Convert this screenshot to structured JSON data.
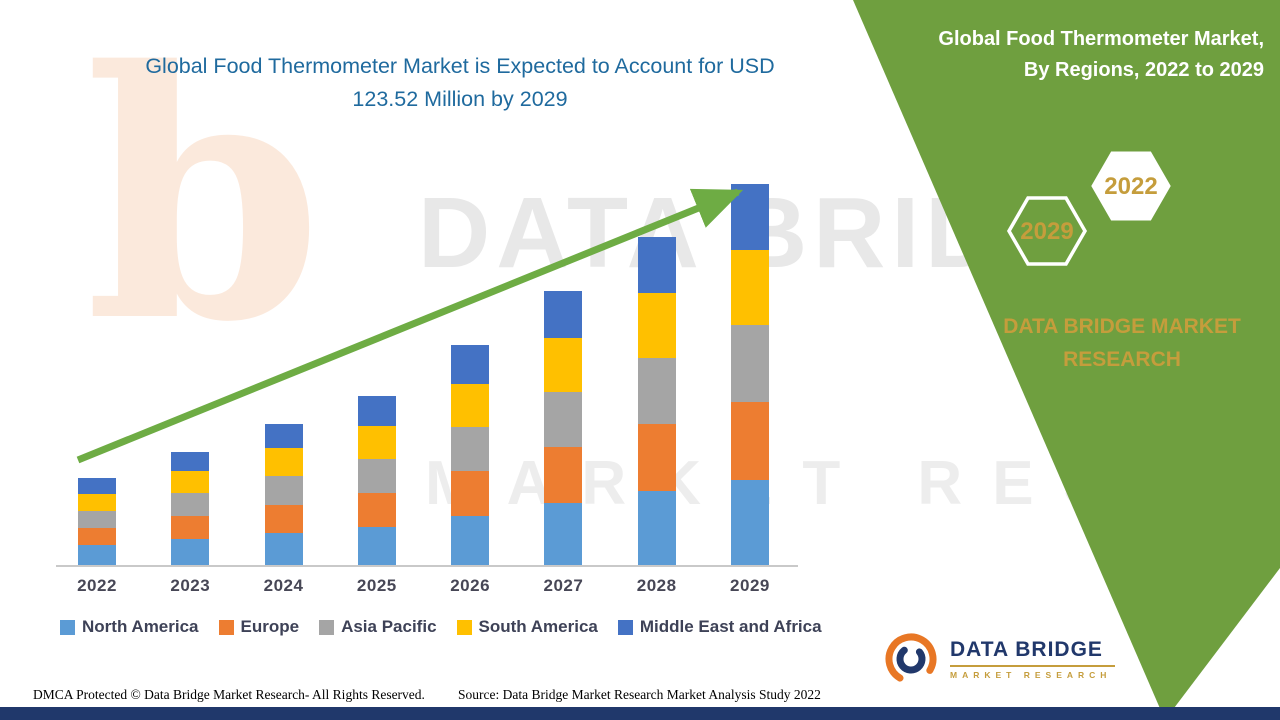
{
  "header": {
    "title_line1": "Global Food Thermometer Market is Expected to Account for USD",
    "title_line2": "123.52 Million by 2029",
    "title_color": "#1F6A9E"
  },
  "side_panel": {
    "bg_color": "#6F9F3F",
    "title_line1": "Global Food Thermometer Market,",
    "title_line2": "By Regions, 2022 to 2029",
    "hexagon_back_label": "2022",
    "hexagon_front_label": "2029",
    "gold_color": "#C59D3C",
    "brand_line1": "DATA BRIDGE MARKET",
    "brand_line2": "RESEARCH"
  },
  "chart_data": {
    "type": "bar",
    "stacked": true,
    "title": "Global Food Thermometer Market, By Regions, 2022 to 2029",
    "units": "USD Million",
    "categories": [
      "2022",
      "2023",
      "2024",
      "2025",
      "2026",
      "2027",
      "2028",
      "2029"
    ],
    "series": [
      {
        "name": "North America",
        "color": "#5B9BD5",
        "values": [
          6.5,
          8.5,
          10.4,
          12.4,
          16.0,
          20.0,
          24.0,
          27.5
        ]
      },
      {
        "name": "Europe",
        "color": "#ED7D31",
        "values": [
          5.5,
          7.5,
          9.2,
          11.0,
          14.5,
          18.2,
          21.8,
          25.4
        ]
      },
      {
        "name": "Asia Pacific",
        "color": "#A5A5A5",
        "values": [
          5.5,
          7.3,
          9.2,
          11.0,
          14.2,
          17.8,
          21.4,
          24.8
        ]
      },
      {
        "name": "South America",
        "color": "#FFC000",
        "values": [
          5.5,
          7.2,
          9.0,
          10.8,
          14.0,
          17.5,
          21.0,
          24.3
        ]
      },
      {
        "name": "Middle East and Africa",
        "color": "#4472C4",
        "values": [
          5.2,
          6.2,
          7.9,
          9.6,
          12.6,
          15.3,
          18.1,
          21.52
        ]
      }
    ],
    "final_value_label": "USD 123.52 Million by 2029",
    "xlabel": "",
    "ylabel": "",
    "ylim": [
      0,
      130
    ],
    "grid": false,
    "legend_position": "bottom",
    "annotations": [
      "green upward trend arrow from 2022 bar to 2029 bar"
    ],
    "arrow_color": "#6EAC44"
  },
  "watermark": {
    "letter": "b",
    "line1": "DATA BRIDGE",
    "line2": "MARKET RESEARCH"
  },
  "logo": {
    "name": "DATA BRIDGE",
    "subtitle": "MARKET RESEARCH"
  },
  "footer": {
    "dmca": "DMCA Protected © Data Bridge Market Research- All Rights Reserved.",
    "source": "Source: Data Bridge Market Research Market Analysis Study 2022"
  }
}
